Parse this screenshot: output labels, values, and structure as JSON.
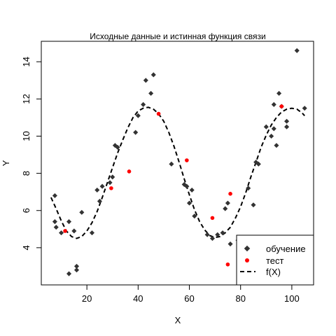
{
  "chart_data": {
    "type": "scatter",
    "title": "Исходные данные и истинная функция связи",
    "xlabel": "X",
    "ylabel": "Y",
    "xlim": [
      2.2,
      108.5
    ],
    "ylim": [
      2.0,
      15.1
    ],
    "x_ticks": [
      20,
      40,
      60,
      80,
      100
    ],
    "y_ticks": [
      4,
      6,
      8,
      10,
      12,
      14
    ],
    "grid": false,
    "legend_position": "bottom-right",
    "colors": {
      "train": "#333333",
      "test": "#ff0000",
      "curve": "#000000"
    },
    "series": [
      {
        "name": "обучение",
        "kind": "points",
        "points": [
          [
            7.5,
            6.8
          ],
          [
            7.5,
            5.4
          ],
          [
            8,
            5.1
          ],
          [
            10,
            4.8
          ],
          [
            13,
            5.4
          ],
          [
            13,
            2.6
          ],
          [
            15,
            4.9
          ],
          [
            16,
            3.0
          ],
          [
            16,
            2.8
          ],
          [
            18,
            5.9
          ],
          [
            22,
            4.8
          ],
          [
            24,
            7.1
          ],
          [
            25,
            6.5
          ],
          [
            26,
            7.3
          ],
          [
            29,
            7.5
          ],
          [
            30,
            7.8
          ],
          [
            31,
            9.5
          ],
          [
            32,
            9.4
          ],
          [
            39,
            10.2
          ],
          [
            40,
            11.1
          ],
          [
            42,
            11.7
          ],
          [
            43,
            13.0
          ],
          [
            45,
            12.3
          ],
          [
            46,
            13.3
          ],
          [
            53,
            8.5
          ],
          [
            58,
            7.4
          ],
          [
            59,
            7.3
          ],
          [
            60,
            6.4
          ],
          [
            61,
            7.1
          ],
          [
            62,
            5.7
          ],
          [
            67,
            4.7
          ],
          [
            69,
            4.5
          ],
          [
            71,
            4.7
          ],
          [
            73,
            4.8
          ],
          [
            74,
            6.1
          ],
          [
            75,
            6.4
          ],
          [
            76,
            4.2
          ],
          [
            79,
            4.4
          ],
          [
            81,
            4.0
          ],
          [
            83,
            7.2
          ],
          [
            85,
            6.3
          ],
          [
            86,
            8.6
          ],
          [
            87,
            8.5
          ],
          [
            90,
            10.5
          ],
          [
            92,
            10.0
          ],
          [
            93,
            10.4
          ],
          [
            93,
            11.7
          ],
          [
            94,
            9.5
          ],
          [
            95,
            12.3
          ],
          [
            96,
            11.6
          ],
          [
            98,
            10.8
          ],
          [
            98,
            10.5
          ],
          [
            102,
            14.6
          ],
          [
            105,
            11.5
          ]
        ]
      },
      {
        "name": "тест",
        "kind": "points",
        "points": [
          [
            11.5,
            4.9
          ],
          [
            29.5,
            7.2
          ],
          [
            36.5,
            8.1
          ],
          [
            48,
            11.2
          ],
          [
            59,
            8.7
          ],
          [
            69,
            5.6
          ],
          [
            75,
            3.1
          ],
          [
            76,
            6.9
          ],
          [
            96,
            11.6
          ]
        ]
      },
      {
        "name": "f(X)",
        "kind": "dashed-line",
        "points": [
          [
            6,
            6.7
          ],
          [
            8,
            6.1
          ],
          [
            10,
            5.45
          ],
          [
            12,
            4.9
          ],
          [
            14,
            4.6
          ],
          [
            16,
            4.5
          ],
          [
            18,
            4.6
          ],
          [
            20,
            4.9
          ],
          [
            22,
            5.35
          ],
          [
            24,
            5.95
          ],
          [
            26,
            6.7
          ],
          [
            28,
            7.5
          ],
          [
            30,
            8.3
          ],
          [
            32,
            9.1
          ],
          [
            34,
            9.8
          ],
          [
            36,
            10.45
          ],
          [
            38,
            11.0
          ],
          [
            40,
            11.35
          ],
          [
            42,
            11.5
          ],
          [
            44,
            11.55
          ],
          [
            46,
            11.45
          ],
          [
            48,
            11.2
          ],
          [
            50,
            10.8
          ],
          [
            52,
            10.2
          ],
          [
            54,
            9.45
          ],
          [
            56,
            8.6
          ],
          [
            58,
            7.7
          ],
          [
            60,
            6.85
          ],
          [
            62,
            6.05
          ],
          [
            64,
            5.4
          ],
          [
            66,
            4.95
          ],
          [
            68,
            4.65
          ],
          [
            70,
            4.55
          ],
          [
            72,
            4.6
          ],
          [
            74,
            4.8
          ],
          [
            76,
            5.1
          ],
          [
            78,
            5.6
          ],
          [
            80,
            6.2
          ],
          [
            82,
            6.95
          ],
          [
            84,
            7.8
          ],
          [
            86,
            8.6
          ],
          [
            88,
            9.4
          ],
          [
            90,
            10.05
          ],
          [
            92,
            10.6
          ],
          [
            94,
            11.0
          ],
          [
            96,
            11.3
          ],
          [
            98,
            11.45
          ],
          [
            100,
            11.5
          ],
          [
            102,
            11.45
          ],
          [
            104,
            11.25
          ],
          [
            105,
            11.1
          ]
        ]
      }
    ]
  }
}
